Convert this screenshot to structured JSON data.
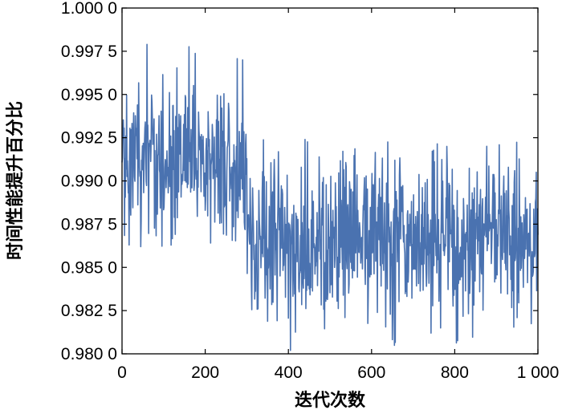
{
  "chart_data": {
    "type": "line",
    "title": "",
    "xlabel": "迭代次数",
    "ylabel": "时间性能提升百分比",
    "xlim": [
      0,
      1000
    ],
    "ylim": [
      0.98,
      1.0
    ],
    "x_ticks": [
      0,
      200,
      400,
      600,
      800,
      1000
    ],
    "x_tick_labels": [
      "0",
      "200",
      "400",
      "600",
      "800",
      "1 000"
    ],
    "y_ticks": [
      0.98,
      0.9825,
      0.985,
      0.9875,
      0.99,
      0.9925,
      0.995,
      0.9975,
      1.0
    ],
    "y_tick_labels": [
      "0.980 0",
      "0.982 5",
      "0.985 0",
      "0.987 5",
      "0.990 0",
      "0.992 5",
      "0.995 0",
      "0.997 5",
      "1.000 0"
    ],
    "grid": false,
    "series_color": "#4a72b0",
    "series": [
      {
        "x_range": [
          0,
          1000
        ],
        "segments": [
          {
            "x_start": 0,
            "x_end": 300,
            "mean": 0.9912,
            "min": 0.9862,
            "max": 0.9979
          },
          {
            "x_start": 300,
            "x_end": 1000,
            "mean": 0.9865,
            "min": 0.9802,
            "max": 0.9924
          }
        ]
      }
    ]
  }
}
